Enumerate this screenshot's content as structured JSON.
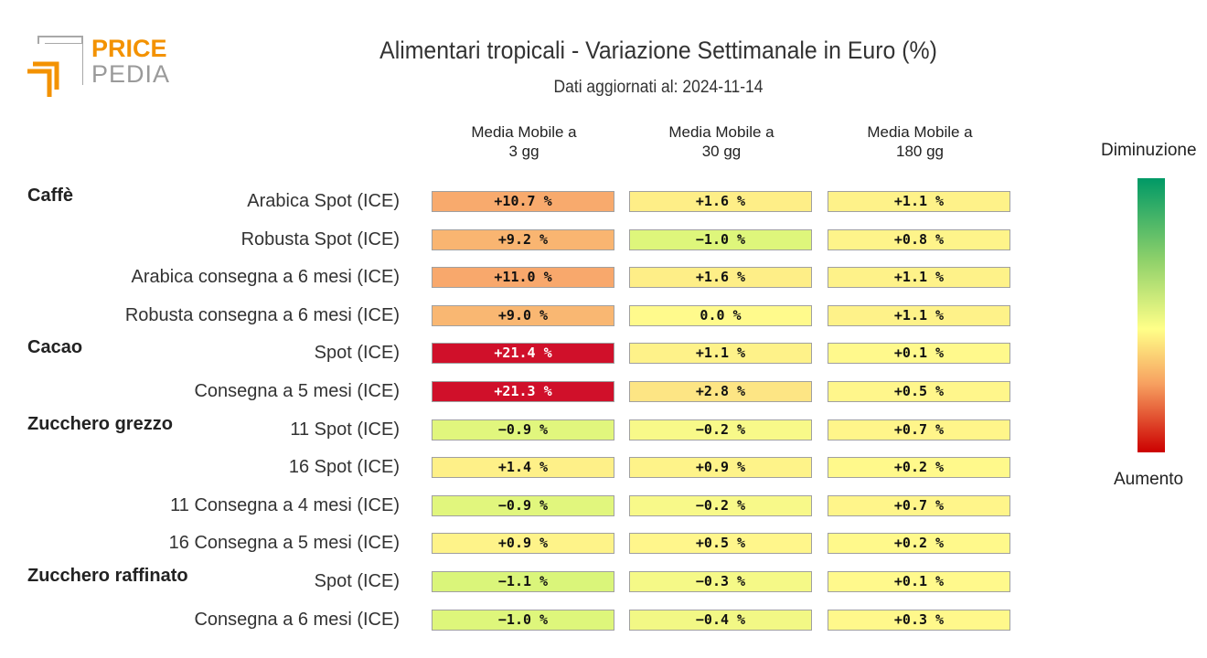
{
  "logo": {
    "line1": "PRICE",
    "line2": "PEDIA",
    "accent_color": "#f39200",
    "gray_color": "#9a9a9a"
  },
  "title": "Alimentari tropicali - Variazione Settimanale in Euro (%)",
  "subtitle": "Dati aggiornati al: 2024-11-14",
  "legend": {
    "top": "Diminuzione",
    "bottom": "Aumento",
    "colors": [
      "#009966",
      "#8fd16a",
      "#ffff88",
      "#f7a060",
      "#cc0000"
    ]
  },
  "chart_data": {
    "type": "heatmap",
    "columns": [
      "Media Mobile a\n3 gg",
      "Media Mobile a\n30 gg",
      "Media Mobile a\n180 gg"
    ],
    "groups": [
      {
        "name": "Caffè",
        "rows": [
          {
            "label": "Arabica Spot (ICE)",
            "values": [
              "+10.7 %",
              "+1.6 %",
              "+1.1 %"
            ]
          },
          {
            "label": "Robusta Spot (ICE)",
            "values": [
              "+9.2 %",
              "−1.0 %",
              "+0.8 %"
            ]
          },
          {
            "label": "Arabica consegna a 6 mesi (ICE)",
            "values": [
              "+11.0 %",
              "+1.6 %",
              "+1.1 %"
            ]
          },
          {
            "label": "Robusta consegna a 6 mesi (ICE)",
            "values": [
              "+9.0 %",
              "0.0 %",
              "+1.1 %"
            ]
          }
        ]
      },
      {
        "name": "Cacao",
        "rows": [
          {
            "label": "Spot (ICE)",
            "values": [
              "+21.4 %",
              "+1.1 %",
              "+0.1 %"
            ]
          },
          {
            "label": "Consegna a 5 mesi (ICE)",
            "values": [
              "+21.3 %",
              "+2.8 %",
              "+0.5 %"
            ]
          }
        ]
      },
      {
        "name": "Zucchero grezzo",
        "rows": [
          {
            "label": "11 Spot (ICE)",
            "values": [
              "−0.9 %",
              "−0.2 %",
              "+0.7 %"
            ]
          },
          {
            "label": "16 Spot (ICE)",
            "values": [
              "+1.4 %",
              "+0.9 %",
              "+0.2 %"
            ]
          },
          {
            "label": "11 Consegna a 4 mesi (ICE)",
            "values": [
              "−0.9 %",
              "−0.2 %",
              "+0.7 %"
            ]
          },
          {
            "label": "16 Consegna a 5 mesi (ICE)",
            "values": [
              "+0.9 %",
              "+0.5 %",
              "+0.2 %"
            ]
          }
        ]
      },
      {
        "name": "Zucchero raffinato",
        "rows": [
          {
            "label": "Spot (ICE)",
            "values": [
              "−1.1 %",
              "−0.3 %",
              "+0.1 %"
            ]
          },
          {
            "label": "Consegna a 6 mesi (ICE)",
            "values": [
              "−1.0 %",
              "−0.4 %",
              "+0.3 %"
            ]
          }
        ]
      }
    ]
  }
}
